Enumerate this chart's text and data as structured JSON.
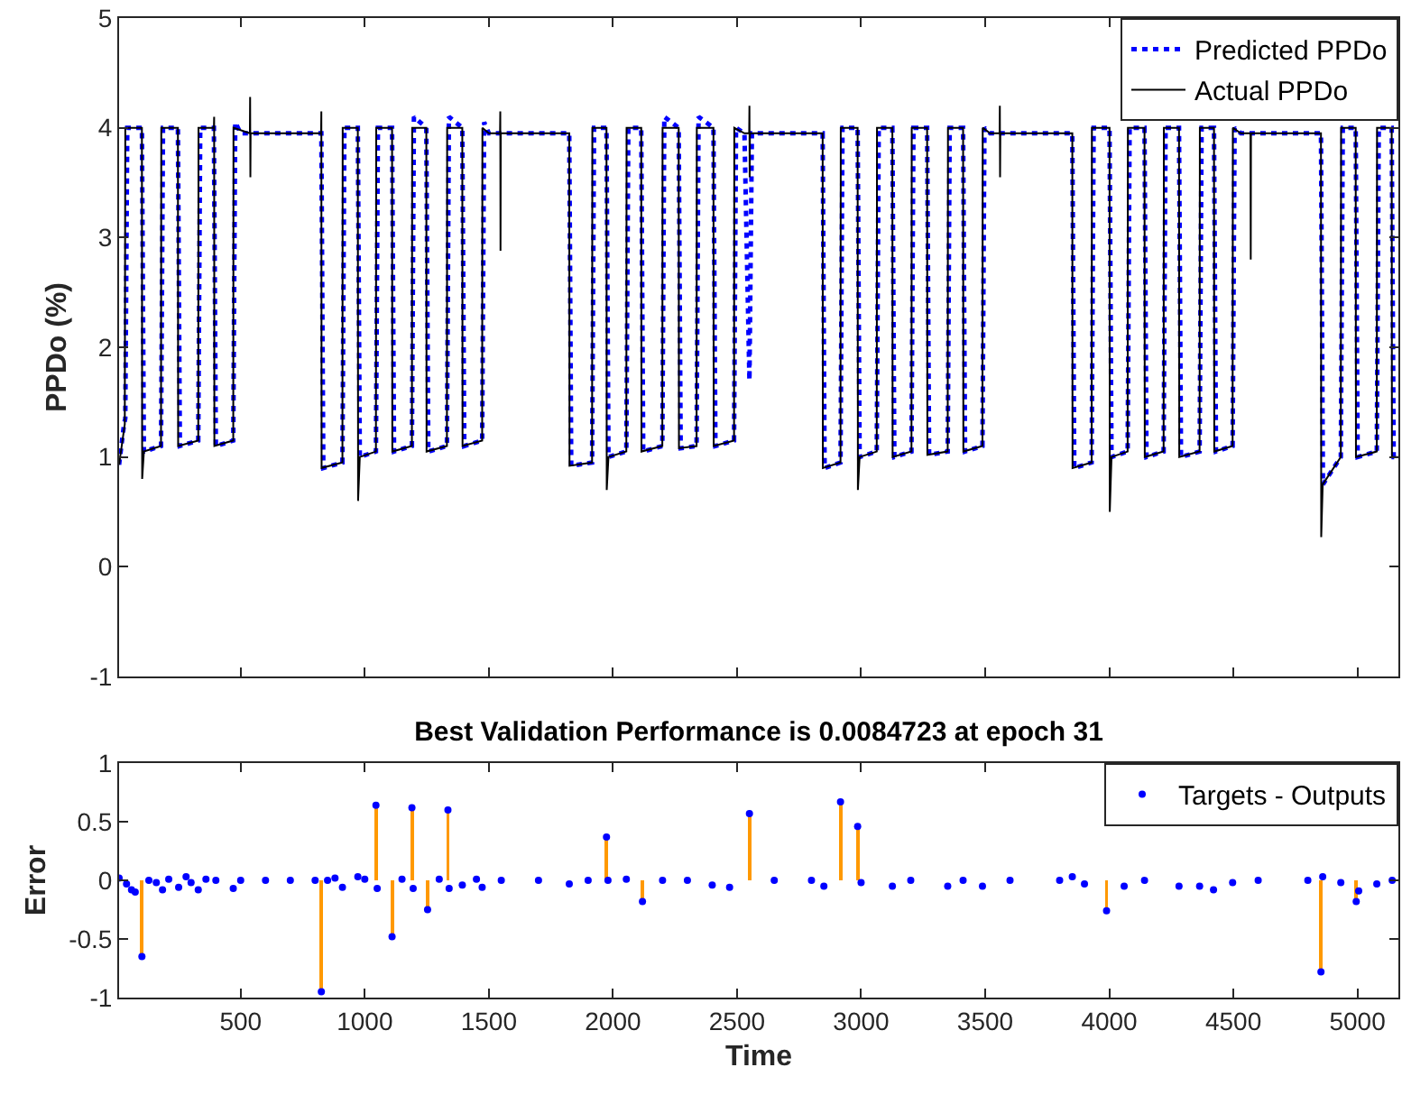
{
  "chart_data": [
    {
      "type": "line",
      "ylabel": "PPDo (%)",
      "xlim": [
        10,
        5165
      ],
      "xticks": [
        500,
        1000,
        1500,
        2000,
        2500,
        3000,
        3500,
        4000,
        4500,
        5000
      ],
      "ylim": [
        -1,
        5
      ],
      "yticks": [
        -1,
        0,
        1,
        2,
        3,
        4,
        5
      ],
      "tick_labels": "y",
      "legend": "top right",
      "series": [
        {
          "name": "Predicted PPDo",
          "color": "#0000ff",
          "line_style": "dotted",
          "x": [
            10,
            30,
            35,
            43,
            102,
            110,
            179,
            187,
            247,
            255,
            329,
            337,
            392,
            400,
            470,
            478,
            500,
            825,
            833,
            910,
            918,
            972,
            980,
            1045,
            1053,
            1110,
            1118,
            1190,
            1198,
            1248,
            1256,
            1331,
            1339,
            1393,
            1401,
            1473,
            1481,
            1500,
            1824,
            1832,
            1916,
            1924,
            1974,
            1982,
            2054,
            2062,
            2114,
            2122,
            2199,
            2207,
            2265,
            2273,
            2337,
            2345,
            2405,
            2413,
            2488,
            2496,
            2530,
            2550,
            2560,
            2845,
            2853,
            2917,
            2925,
            2986,
            2994,
            3063,
            3071,
            3126,
            3134,
            3203,
            3211,
            3266,
            3274,
            3349,
            3357,
            3411,
            3419,
            3489,
            3497,
            3520,
            3851,
            3859,
            3929,
            3937,
            4001,
            4009,
            4074,
            4082,
            4142,
            4150,
            4219,
            4227,
            4281,
            4289,
            4364,
            4372,
            4422,
            4430,
            4497,
            4505,
            4530,
            4853,
            4861,
            4933,
            4941,
            4993,
            5001,
            5078,
            5086,
            5138,
            5146,
            5165
          ],
          "values": [
            0.93,
            1.3,
            1.35,
            4.0,
            4.0,
            1.05,
            1.1,
            4.0,
            4.0,
            1.1,
            1.15,
            4.0,
            4.0,
            1.1,
            1.15,
            4.05,
            3.95,
            3.95,
            0.9,
            0.95,
            4.0,
            4.0,
            1.0,
            1.05,
            4.0,
            4.0,
            1.05,
            1.1,
            4.1,
            4.0,
            1.05,
            1.1,
            4.1,
            4.0,
            1.1,
            1.15,
            4.05,
            3.95,
            3.95,
            0.92,
            0.95,
            4.0,
            4.0,
            1.0,
            1.05,
            4.0,
            4.0,
            1.05,
            1.1,
            4.1,
            4.0,
            1.08,
            1.1,
            4.1,
            4.0,
            1.1,
            1.15,
            4.0,
            3.95,
            1.7,
            3.95,
            3.95,
            0.9,
            0.95,
            4.0,
            4.0,
            1.0,
            1.05,
            4.0,
            4.0,
            1.0,
            1.05,
            4.0,
            4.0,
            1.02,
            1.05,
            4.0,
            4.0,
            1.05,
            1.1,
            4.0,
            3.95,
            3.95,
            0.9,
            0.95,
            4.0,
            4.0,
            1.0,
            1.05,
            4.0,
            4.0,
            1.0,
            1.05,
            4.0,
            4.0,
            1.0,
            1.05,
            4.0,
            4.0,
            1.05,
            1.1,
            4.0,
            3.95,
            3.95,
            0.75,
            1.0,
            4.0,
            4.0,
            1.0,
            1.05,
            4.0,
            4.0,
            1.0,
            1.0
          ]
        },
        {
          "name": "Actual PPDo",
          "color": "#000000",
          "line_style": "solid",
          "x": [
            10,
            33,
            35,
            102,
            103,
            110,
            179,
            180,
            247,
            248,
            329,
            330,
            392,
            393,
            394,
            470,
            471,
            537,
            538,
            539,
            540,
            824,
            825,
            826,
            910,
            911,
            972,
            973,
            980,
            1045,
            1046,
            1110,
            1111,
            1190,
            1191,
            1248,
            1249,
            1331,
            1332,
            1393,
            1394,
            1473,
            1474,
            1500,
            1545,
            1546,
            1547,
            1548,
            1824,
            1825,
            1916,
            1917,
            1974,
            1975,
            1982,
            2054,
            2055,
            2114,
            2115,
            2199,
            2200,
            2265,
            2266,
            2337,
            2338,
            2405,
            2406,
            2488,
            2489,
            2530,
            2549,
            2550,
            2551,
            2552,
            2845,
            2846,
            2917,
            2918,
            2986,
            2987,
            2994,
            3063,
            3064,
            3126,
            3127,
            3203,
            3204,
            3266,
            3267,
            3349,
            3350,
            3411,
            3412,
            3489,
            3490,
            3520,
            3558,
            3559,
            3560,
            3561,
            3851,
            3852,
            3929,
            3930,
            4001,
            4002,
            4009,
            4074,
            4075,
            4142,
            4143,
            4219,
            4220,
            4281,
            4282,
            4364,
            4365,
            4422,
            4423,
            4497,
            4498,
            4530,
            4569,
            4570,
            4571,
            4853,
            4854,
            4860,
            4933,
            4934,
            4993,
            4994,
            5078,
            5079,
            5138,
            5139,
            5165
          ],
          "values": [
            0.93,
            1.3,
            4.0,
            4.0,
            0.8,
            1.05,
            1.1,
            4.0,
            4.0,
            1.1,
            1.15,
            4.0,
            4.0,
            4.1,
            1.1,
            1.15,
            4.0,
            3.95,
            4.28,
            3.55,
            3.95,
            3.95,
            4.15,
            0.9,
            0.95,
            4.0,
            4.0,
            0.6,
            1.0,
            1.05,
            4.0,
            4.0,
            1.05,
            1.1,
            4.0,
            4.0,
            1.05,
            1.1,
            4.0,
            4.0,
            1.1,
            1.15,
            4.0,
            3.95,
            3.95,
            4.15,
            2.88,
            3.95,
            3.95,
            0.92,
            0.95,
            4.0,
            4.0,
            0.7,
            1.0,
            1.05,
            4.0,
            4.0,
            1.05,
            1.1,
            4.0,
            4.0,
            1.08,
            1.1,
            4.0,
            4.0,
            1.1,
            1.15,
            4.0,
            3.95,
            3.95,
            4.2,
            3.55,
            3.95,
            3.95,
            0.9,
            0.95,
            4.0,
            4.0,
            0.7,
            1.0,
            1.05,
            4.0,
            4.0,
            1.0,
            1.05,
            4.0,
            4.0,
            1.02,
            1.05,
            4.0,
            4.0,
            1.05,
            1.1,
            4.0,
            3.95,
            3.95,
            4.2,
            3.55,
            3.95,
            3.95,
            0.9,
            0.95,
            4.0,
            4.0,
            0.5,
            1.0,
            1.05,
            4.0,
            4.0,
            1.0,
            1.05,
            4.0,
            4.0,
            1.0,
            1.05,
            4.0,
            4.0,
            1.05,
            1.1,
            4.0,
            3.95,
            3.95,
            2.8,
            3.95,
            3.95,
            0.27,
            0.75,
            1.0,
            4.0,
            4.0,
            1.0,
            1.05,
            4.0,
            4.0,
            1.0,
            1.0
          ]
        }
      ]
    },
    {
      "type": "scatter",
      "title": "Best Validation Performance is 0.0084723 at epoch 31",
      "xlabel": "Time",
      "ylabel": "Error",
      "xlim": [
        10,
        5165
      ],
      "xticks": [
        500,
        1000,
        1500,
        2000,
        2500,
        3000,
        3500,
        4000,
        4500,
        5000
      ],
      "ylim": [
        -1,
        1
      ],
      "yticks": [
        -1,
        -0.5,
        0,
        0.5,
        1
      ],
      "legend": "top right",
      "marker": "circle",
      "series": [
        {
          "type": "bar",
          "color": "#ff9900",
          "x": [
            102,
            825,
            1045,
            1110,
            1190,
            1253,
            1335,
            1974,
            2119,
            2550,
            2917,
            2986,
            3989,
            4853,
            4995
          ],
          "values": [
            -0.65,
            -0.95,
            0.64,
            -0.48,
            0.62,
            -0.25,
            0.6,
            0.37,
            -0.18,
            0.57,
            0.67,
            0.46,
            -0.26,
            -0.78,
            -0.18
          ]
        },
        {
          "name": "Targets - Outputs",
          "color": "#0000ff",
          "x": [
            10,
            40,
            60,
            75,
            102,
            130,
            160,
            185,
            210,
            250,
            280,
            300,
            329,
            360,
            400,
            470,
            500,
            600,
            700,
            800,
            825,
            850,
            880,
            910,
            972,
            1000,
            1045,
            1050,
            1110,
            1150,
            1190,
            1195,
            1253,
            1300,
            1335,
            1340,
            1393,
            1450,
            1473,
            1550,
            1700,
            1824,
            1900,
            1974,
            1980,
            2054,
            2119,
            2200,
            2300,
            2400,
            2470,
            2550,
            2650,
            2800,
            2850,
            2917,
            2986,
            3000,
            3126,
            3200,
            3349,
            3411,
            3489,
            3600,
            3800,
            3851,
            3900,
            3989,
            4060,
            4142,
            4281,
            4364,
            4420,
            4497,
            4600,
            4800,
            4853,
            4860,
            4933,
            4995,
            5005,
            5078,
            5140
          ],
          "values": [
            0.02,
            -0.03,
            -0.08,
            -0.1,
            -0.65,
            0.0,
            -0.02,
            -0.08,
            0.01,
            -0.06,
            0.03,
            -0.02,
            -0.08,
            0.01,
            0.0,
            -0.07,
            0.0,
            0.0,
            0.0,
            0.0,
            -0.95,
            0.0,
            0.02,
            -0.06,
            0.03,
            0.01,
            0.64,
            -0.07,
            -0.48,
            0.01,
            0.62,
            -0.07,
            -0.25,
            0.01,
            0.6,
            -0.07,
            -0.04,
            0.01,
            -0.06,
            0.0,
            0.0,
            -0.03,
            0.0,
            0.37,
            0.0,
            0.01,
            -0.18,
            0.0,
            0.0,
            -0.04,
            -0.06,
            0.57,
            0.0,
            0.0,
            -0.05,
            0.67,
            0.46,
            -0.02,
            -0.05,
            0.0,
            -0.05,
            0.0,
            -0.05,
            0.0,
            0.0,
            0.03,
            -0.03,
            -0.26,
            -0.05,
            0.0,
            -0.05,
            -0.05,
            -0.08,
            -0.02,
            0.0,
            0.0,
            -0.78,
            0.03,
            -0.02,
            -0.18,
            -0.09,
            -0.03,
            0.0
          ]
        }
      ]
    }
  ]
}
